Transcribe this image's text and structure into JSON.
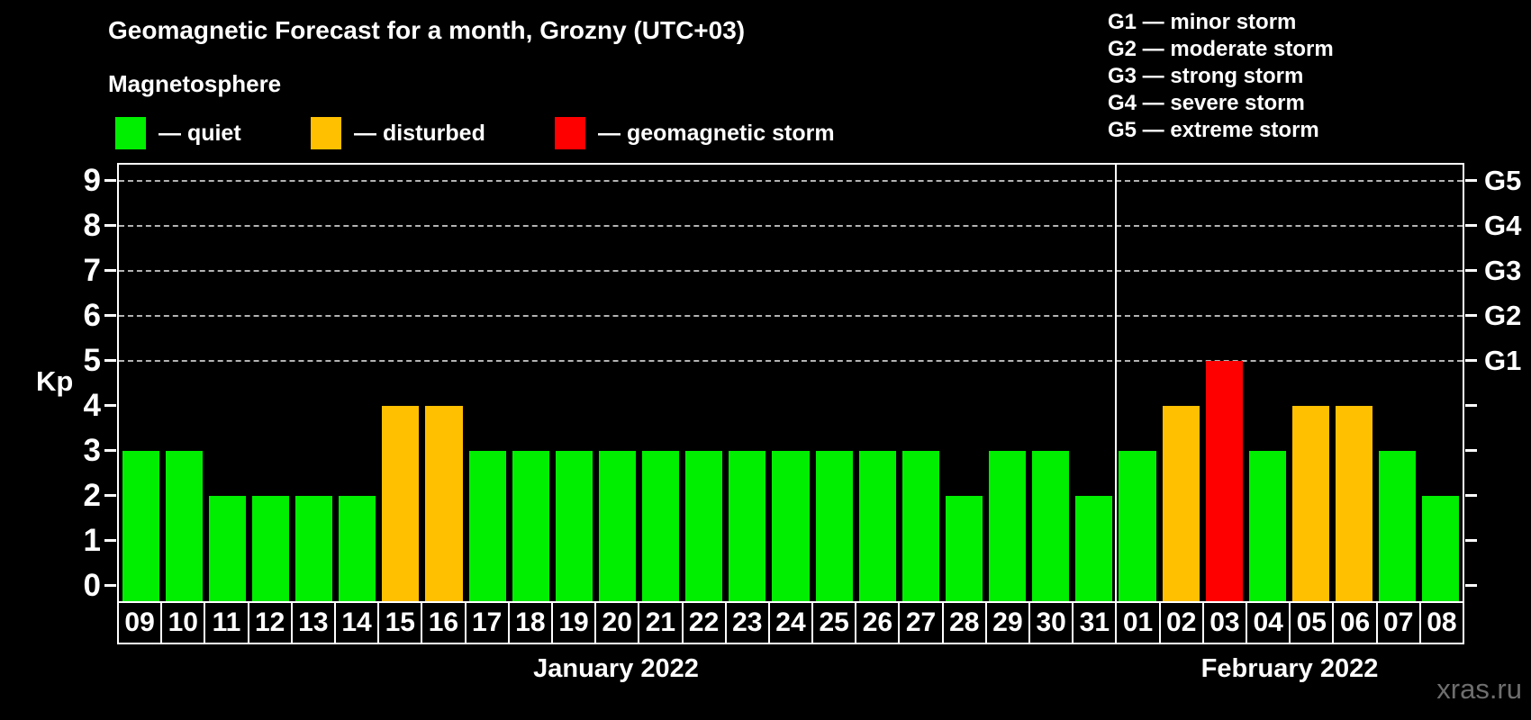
{
  "title": "Geomagnetic Forecast for a month, Grozny (UTC+03)",
  "legend": {
    "title": "Magnetosphere",
    "items": [
      {
        "status": "quiet",
        "label": "— quiet",
        "color": "#00EE00"
      },
      {
        "status": "disturbed",
        "label": "— disturbed",
        "color": "#FFC000"
      },
      {
        "status": "storm",
        "label": "— geomagnetic storm",
        "color": "#FF0000"
      }
    ]
  },
  "g_legend": [
    "G1 — minor storm",
    "G2 — moderate storm",
    "G3 — strong storm",
    "G4 — severe storm",
    "G5 — extreme storm"
  ],
  "colors": {
    "background": "#000000",
    "frame": "#FFFFFF",
    "gridline": "#B3B3B3",
    "quiet": "#00EE00",
    "disturbed": "#FFC000",
    "storm": "#FF0000",
    "watermark": "#6E6E6E"
  },
  "watermark": "xras.ru",
  "chart_data": {
    "type": "bar",
    "title": "Geomagnetic Forecast for a month, Grozny (UTC+03)",
    "ylabel": "Kp",
    "ylim": [
      -0.35,
      9.36
    ],
    "yticks": [
      0,
      1,
      2,
      3,
      4,
      5,
      6,
      7,
      8,
      9
    ],
    "gridlines_at": [
      5,
      6,
      7,
      8,
      9
    ],
    "grid": "dashed horizontal at Kp 5-9 only",
    "right_axis_labels": [
      {
        "value": 5,
        "label": "G1"
      },
      {
        "value": 6,
        "label": "G2"
      },
      {
        "value": 7,
        "label": "G3"
      },
      {
        "value": 8,
        "label": "G4"
      },
      {
        "value": 9,
        "label": "G5"
      }
    ],
    "categories": [
      "09",
      "10",
      "11",
      "12",
      "13",
      "14",
      "15",
      "16",
      "17",
      "18",
      "19",
      "20",
      "21",
      "22",
      "23",
      "24",
      "25",
      "26",
      "27",
      "28",
      "29",
      "30",
      "31",
      "01",
      "02",
      "03",
      "04",
      "05",
      "06",
      "07",
      "08"
    ],
    "values": [
      3,
      3,
      2,
      2,
      2,
      2,
      4,
      4,
      3,
      3,
      3,
      3,
      3,
      3,
      3,
      3,
      3,
      3,
      3,
      2,
      3,
      3,
      2,
      3,
      4,
      5,
      3,
      4,
      4,
      3,
      2
    ],
    "color_rule": {
      "quiet": "Kp < 4",
      "disturbed": "Kp = 4",
      "storm": "Kp >= 5"
    },
    "month_groups": [
      {
        "label": "January 2022",
        "start_index": 0,
        "days": 23
      },
      {
        "label": "February 2022",
        "start_index": 23,
        "days": 8
      }
    ]
  }
}
